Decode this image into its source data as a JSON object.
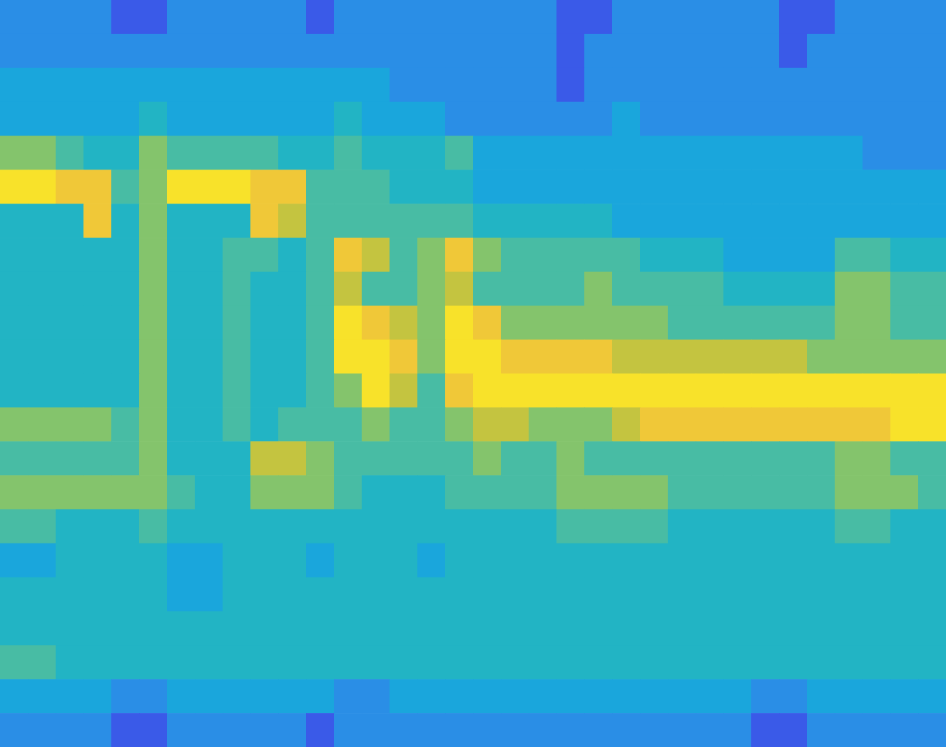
{
  "chart_data": {
    "type": "heatmap",
    "tick_labels": false,
    "zlim": [
      1,
      9
    ],
    "cells": [
      [
        2,
        2,
        2,
        2,
        1,
        1,
        2,
        2,
        2,
        2,
        2,
        1,
        2,
        2,
        2,
        2,
        2,
        2,
        2,
        2,
        1,
        1,
        2,
        2,
        2,
        2,
        2,
        2,
        1,
        1,
        2,
        2,
        2,
        2
      ],
      [
        2,
        2,
        2,
        2,
        2,
        2,
        2,
        2,
        2,
        2,
        2,
        2,
        2,
        2,
        2,
        2,
        2,
        2,
        2,
        2,
        1,
        2,
        2,
        2,
        2,
        2,
        2,
        2,
        1,
        2,
        2,
        2,
        2,
        2
      ],
      [
        3,
        3,
        3,
        3,
        3,
        3,
        3,
        3,
        3,
        3,
        3,
        3,
        3,
        3,
        2,
        2,
        2,
        2,
        2,
        2,
        1,
        2,
        2,
        2,
        2,
        2,
        2,
        2,
        2,
        2,
        2,
        2,
        2,
        2
      ],
      [
        3,
        3,
        3,
        3,
        3,
        4,
        3,
        3,
        3,
        3,
        3,
        3,
        4,
        3,
        3,
        3,
        2,
        2,
        2,
        2,
        2,
        2,
        3,
        2,
        2,
        2,
        2,
        2,
        2,
        2,
        2,
        2,
        2,
        2
      ],
      [
        6,
        6,
        5,
        4,
        4,
        6,
        5,
        5,
        5,
        5,
        4,
        4,
        5,
        4,
        4,
        4,
        5,
        3,
        3,
        3,
        3,
        3,
        3,
        3,
        3,
        3,
        3,
        3,
        3,
        3,
        3,
        2,
        2,
        2
      ],
      [
        9,
        9,
        8,
        8,
        5,
        6,
        9,
        9,
        9,
        8,
        8,
        5,
        5,
        5,
        4,
        4,
        4,
        3,
        3,
        3,
        3,
        3,
        3,
        3,
        3,
        3,
        3,
        3,
        3,
        3,
        3,
        3,
        3,
        3
      ],
      [
        4,
        4,
        4,
        8,
        4,
        6,
        4,
        4,
        4,
        8,
        7,
        5,
        5,
        5,
        5,
        5,
        5,
        4,
        4,
        4,
        4,
        4,
        3,
        3,
        3,
        3,
        3,
        3,
        3,
        3,
        3,
        3,
        3,
        3
      ],
      [
        4,
        4,
        4,
        4,
        4,
        6,
        4,
        4,
        5,
        5,
        4,
        5,
        8,
        7,
        5,
        6,
        8,
        6,
        5,
        5,
        5,
        5,
        5,
        4,
        4,
        4,
        3,
        3,
        3,
        3,
        5,
        5,
        4,
        4
      ],
      [
        4,
        4,
        4,
        4,
        4,
        6,
        4,
        4,
        5,
        4,
        4,
        5,
        7,
        5,
        5,
        6,
        7,
        5,
        5,
        5,
        5,
        6,
        5,
        5,
        5,
        5,
        4,
        4,
        4,
        4,
        6,
        6,
        5,
        5
      ],
      [
        4,
        4,
        4,
        4,
        4,
        6,
        4,
        4,
        5,
        4,
        4,
        5,
        9,
        8,
        7,
        6,
        9,
        8,
        6,
        6,
        6,
        6,
        6,
        6,
        5,
        5,
        5,
        5,
        5,
        5,
        6,
        6,
        5,
        5
      ],
      [
        4,
        4,
        4,
        4,
        4,
        6,
        4,
        4,
        5,
        4,
        4,
        5,
        9,
        9,
        8,
        6,
        9,
        9,
        8,
        8,
        8,
        8,
        7,
        7,
        7,
        7,
        7,
        7,
        7,
        6,
        6,
        6,
        6,
        6
      ],
      [
        4,
        4,
        4,
        4,
        4,
        6,
        4,
        4,
        5,
        4,
        4,
        5,
        6,
        9,
        7,
        5,
        8,
        9,
        9,
        9,
        9,
        9,
        9,
        9,
        9,
        9,
        9,
        9,
        9,
        9,
        9,
        9,
        9,
        9
      ],
      [
        6,
        6,
        6,
        6,
        5,
        6,
        4,
        4,
        5,
        4,
        5,
        5,
        5,
        6,
        5,
        5,
        6,
        7,
        7,
        6,
        6,
        6,
        7,
        8,
        8,
        8,
        8,
        8,
        8,
        8,
        8,
        8,
        9,
        9
      ],
      [
        5,
        5,
        5,
        5,
        5,
        6,
        4,
        4,
        4,
        7,
        7,
        6,
        5,
        5,
        5,
        5,
        5,
        6,
        5,
        5,
        6,
        5,
        5,
        5,
        5,
        5,
        5,
        5,
        5,
        5,
        6,
        6,
        5,
        5
      ],
      [
        6,
        6,
        6,
        6,
        6,
        6,
        5,
        4,
        4,
        6,
        6,
        6,
        5,
        4,
        4,
        4,
        5,
        5,
        5,
        5,
        6,
        6,
        6,
        6,
        5,
        5,
        5,
        5,
        5,
        5,
        6,
        6,
        6,
        5
      ],
      [
        5,
        5,
        4,
        4,
        4,
        5,
        4,
        4,
        4,
        4,
        4,
        4,
        4,
        4,
        4,
        4,
        4,
        4,
        4,
        4,
        5,
        5,
        5,
        5,
        4,
        4,
        4,
        4,
        4,
        4,
        5,
        5,
        4,
        4
      ],
      [
        3,
        3,
        4,
        4,
        4,
        4,
        3,
        3,
        4,
        4,
        4,
        3,
        4,
        4,
        4,
        3,
        4,
        4,
        4,
        4,
        4,
        4,
        4,
        4,
        4,
        4,
        4,
        4,
        4,
        4,
        4,
        4,
        4,
        4
      ],
      [
        4,
        4,
        4,
        4,
        4,
        4,
        3,
        3,
        4,
        4,
        4,
        4,
        4,
        4,
        4,
        4,
        4,
        4,
        4,
        4,
        4,
        4,
        4,
        4,
        4,
        4,
        4,
        4,
        4,
        4,
        4,
        4,
        4,
        4
      ],
      [
        4,
        4,
        4,
        4,
        4,
        4,
        4,
        4,
        4,
        4,
        4,
        4,
        4,
        4,
        4,
        4,
        4,
        4,
        4,
        4,
        4,
        4,
        4,
        4,
        4,
        4,
        4,
        4,
        4,
        4,
        4,
        4,
        4,
        4
      ],
      [
        5,
        5,
        4,
        4,
        4,
        4,
        4,
        4,
        4,
        4,
        4,
        4,
        4,
        4,
        4,
        4,
        4,
        4,
        4,
        4,
        4,
        4,
        4,
        4,
        4,
        4,
        4,
        4,
        4,
        4,
        4,
        4,
        4,
        4
      ],
      [
        3,
        3,
        3,
        3,
        2,
        2,
        3,
        3,
        3,
        3,
        3,
        3,
        2,
        2,
        3,
        3,
        3,
        3,
        3,
        3,
        3,
        3,
        3,
        3,
        3,
        3,
        3,
        2,
        2,
        3,
        3,
        3,
        3,
        3
      ],
      [
        2,
        2,
        2,
        2,
        1,
        1,
        2,
        2,
        2,
        2,
        2,
        1,
        2,
        2,
        2,
        2,
        2,
        2,
        2,
        2,
        2,
        2,
        2,
        2,
        2,
        2,
        2,
        1,
        1,
        2,
        2,
        2,
        2,
        2
      ]
    ]
  }
}
